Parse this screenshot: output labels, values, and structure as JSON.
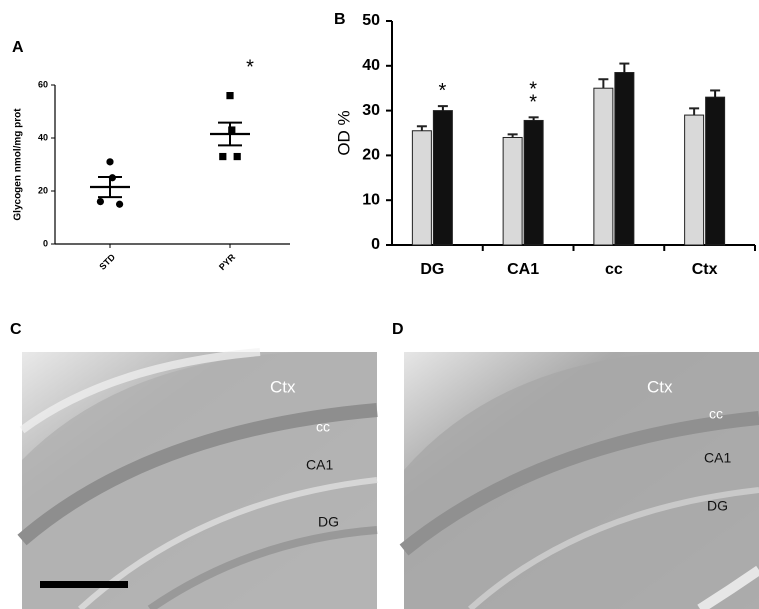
{
  "chart_data": [
    {
      "type": "dotplot",
      "panel": "A",
      "ylabel": "Glycogen nmol/mg prot",
      "categories": [
        "STD",
        "PYR"
      ],
      "points": [
        [
          31,
          25,
          16,
          15
        ],
        [
          56,
          43,
          33,
          33
        ]
      ],
      "mean": [
        21.5,
        41.5
      ],
      "sem": [
        3.8,
        4.3
      ],
      "annotation": "*",
      "color": "#000000",
      "ylim": [
        0,
        60
      ],
      "yticks": [
        0,
        20,
        40,
        60
      ]
    },
    {
      "type": "bar",
      "panel": "B",
      "ylabel": "OD %",
      "categories": [
        "DG",
        "CA1",
        "cc",
        "Ctx"
      ],
      "series": [
        {
          "color": "#d9d9d9",
          "values": [
            25.5,
            24,
            35,
            29
          ],
          "errors": [
            1,
            0.7,
            2,
            1.5
          ]
        },
        {
          "color": "#111111",
          "values": [
            30,
            27.8,
            38.5,
            33
          ],
          "errors": [
            1,
            0.7,
            2,
            1.5
          ]
        }
      ],
      "annotations": [
        "*",
        "**",
        null,
        null
      ],
      "ylim": [
        0,
        50
      ],
      "yticks": [
        0,
        10,
        20,
        30,
        40,
        50
      ]
    }
  ],
  "images": [
    {
      "panel": "C",
      "labels": [
        "Ctx",
        "cc",
        "CA1",
        "DG"
      ]
    },
    {
      "panel": "D",
      "labels": [
        "Ctx",
        "cc",
        "CA1",
        "DG"
      ]
    }
  ]
}
